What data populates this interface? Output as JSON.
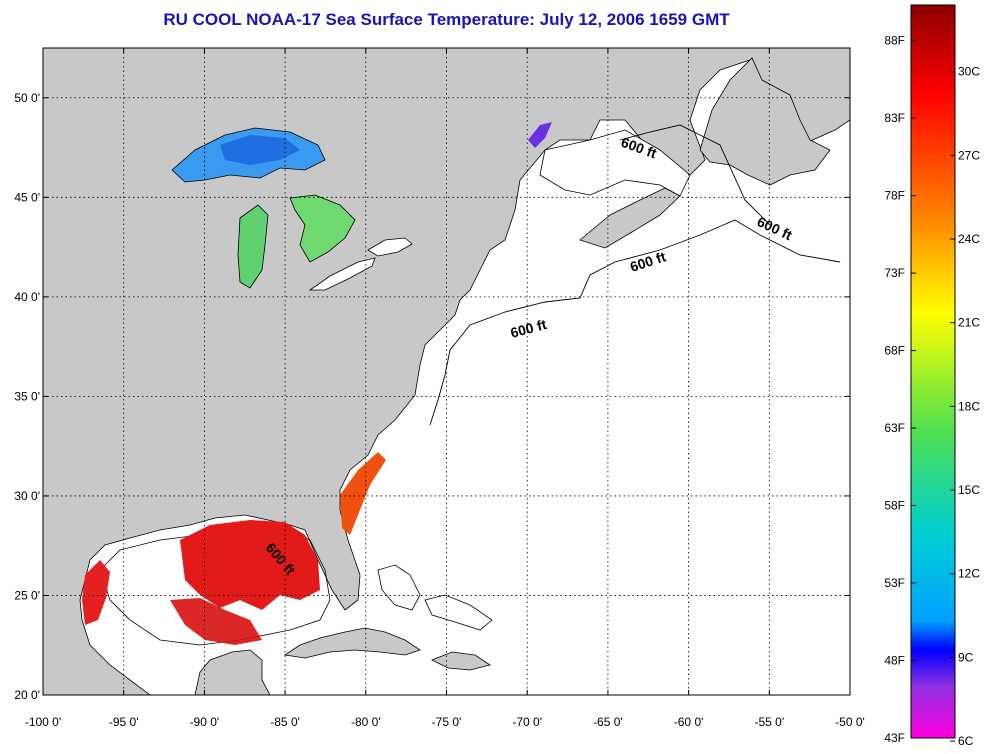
{
  "title": "RU COOL  NOAA-17  Sea Surface Temperature:  July 12, 2006 1659 GMT",
  "map": {
    "lon_range": [
      -100,
      -50
    ],
    "lat_range": [
      20,
      52.5
    ],
    "lon_ticks": [
      "-100 0'",
      "-95 0'",
      "-90 0'",
      "-85 0'",
      "-80 0'",
      "-75 0'",
      "-70 0'",
      "-65 0'",
      "-60 0'",
      "-55 0'",
      "-50 0'"
    ],
    "lat_ticks": [
      "20 0'",
      "25 0'",
      "30 0'",
      "35 0'",
      "40 0'",
      "45 0'",
      "50 0'"
    ],
    "grid": true,
    "grid_style": "dotted",
    "land_color": "#c8c8c8",
    "ocean_color": "#ffffff",
    "contour_label": "600 ft",
    "contour_label_count": 5
  },
  "colorbar": {
    "placement": "right",
    "fahrenheit_labels": [
      "88F",
      "83F",
      "78F",
      "73F",
      "68F",
      "63F",
      "58F",
      "53F",
      "48F",
      "43F"
    ],
    "celsius_labels": [
      "30C",
      "27C",
      "24C",
      "21C",
      "18C",
      "15C",
      "12C",
      "9C",
      "6C"
    ],
    "colors_top_to_bottom": [
      "#8b0000",
      "#ff0000",
      "#ff8c00",
      "#ffff00",
      "#50e050",
      "#00d0d0",
      "#00a0ff",
      "#0000ff",
      "#9030e0",
      "#ff00e0"
    ]
  }
}
